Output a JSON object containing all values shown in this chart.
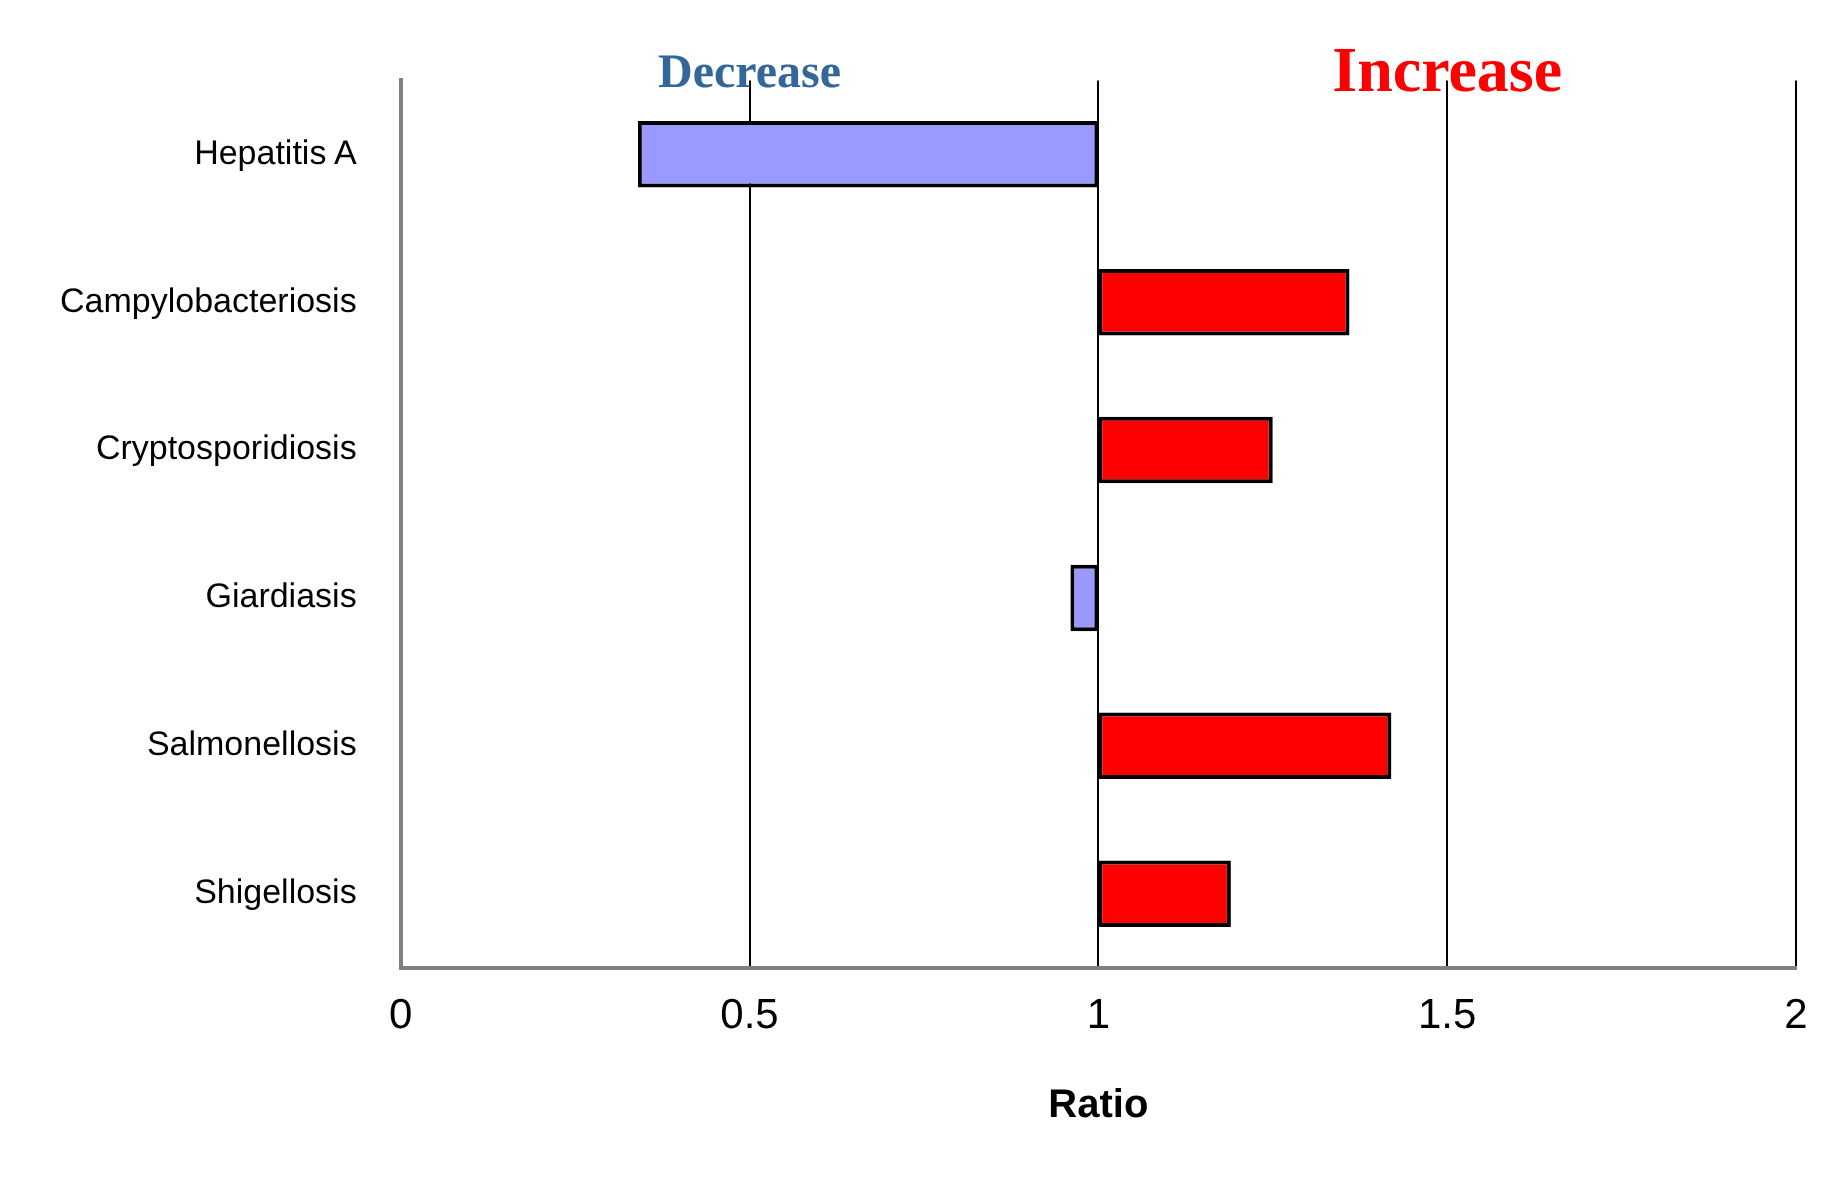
{
  "chart_data": {
    "type": "bar",
    "orientation": "horizontal",
    "xlabel": "Ratio",
    "categories": [
      "Hepatitis A",
      "Campylobacteriosis",
      "Cryptosporidiosis",
      "Giardiasis",
      "Salmonellosis",
      "Shigellosis"
    ],
    "base": [
      1,
      1,
      1,
      1,
      1,
      1
    ],
    "values": [
      -0.66,
      0.36,
      0.25,
      -0.04,
      0.42,
      0.19
    ],
    "colors": [
      "#9999ff",
      "#ff0000",
      "#ff0000",
      "#9999ff",
      "#ff0000",
      "#ff0000"
    ],
    "xlim": [
      0,
      2
    ],
    "xticks": [
      0,
      0.5,
      1,
      1.5,
      2
    ],
    "grid": "x",
    "legend": false,
    "annotations": [
      "Decrease",
      "Increase"
    ]
  }
}
